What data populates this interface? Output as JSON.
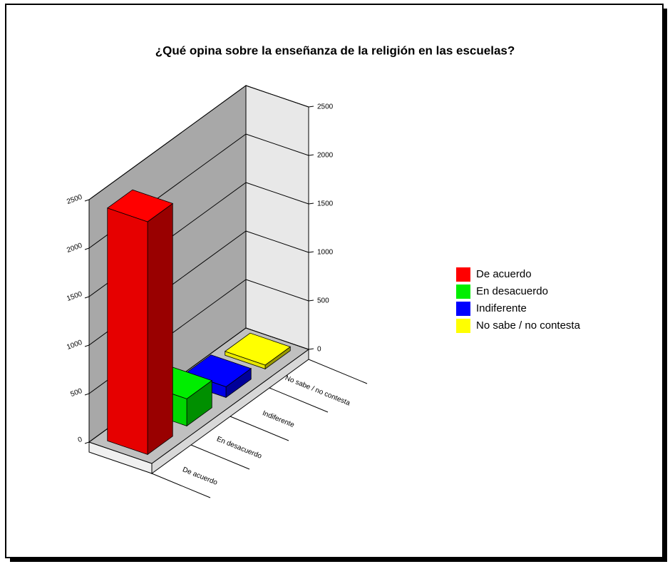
{
  "chart_data": {
    "type": "bar3d",
    "title": "¿Qué opina sobre la enseñanza de la religión en las escuelas?",
    "categories": [
      "De acuerdo",
      "En desacuerdo",
      "Indiferente",
      "No sabe / no contesta"
    ],
    "values": [
      2400,
      280,
      110,
      40
    ],
    "colors": [
      "#ff0000",
      "#00ee00",
      "#0000ff",
      "#ffff00"
    ],
    "ylim": [
      0,
      2500
    ],
    "yticks": [
      0,
      500,
      1000,
      1500,
      2000,
      2500
    ],
    "grid": true,
    "legend": "right"
  }
}
